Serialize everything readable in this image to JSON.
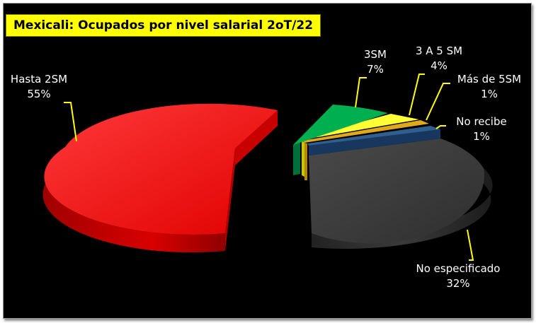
{
  "chart_data": {
    "type": "pie",
    "title": "Mexicali: Ocupados por nivel salarial  2oT/22",
    "slices": [
      {
        "label": "Hasta 2SM",
        "value": 55,
        "value_label": "55%",
        "color": "#ff0000"
      },
      {
        "label": "3SM",
        "value": 7,
        "value_label": "7%",
        "color": "#00a650"
      },
      {
        "label": "3 A 5 SM",
        "value": 4,
        "value_label": "4%",
        "color": "#ffff00"
      },
      {
        "label": "Más de 5SM",
        "value": 1,
        "value_label": "1%",
        "color": "#d4a017"
      },
      {
        "label": "No recibe",
        "value": 1,
        "value_label": "1%",
        "color": "#1f4e79"
      },
      {
        "label": "No especificado",
        "value": 32,
        "value_label": "32%",
        "color": "#3d3d3d"
      }
    ],
    "leader_line_color": "#ffff00",
    "background": "#000000",
    "title_background": "#ffff00"
  }
}
